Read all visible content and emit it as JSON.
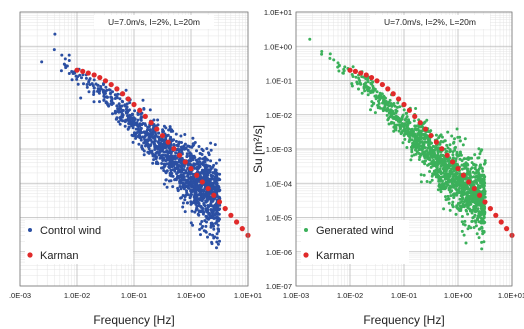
{
  "chart_data": [
    {
      "type": "scatter",
      "panel": "left",
      "annotation": "U=7.0m/s, I=2%, L=20m",
      "xlabel": "Frequency [Hz]",
      "ylabel": "",
      "xscale": "log",
      "yscale": "log",
      "xlim": [
        0.001,
        10
      ],
      "ylim": [
        1e-07,
        10
      ],
      "x_ticks": [
        ".0E-03",
        "1.0E-02",
        "1.0E-01",
        "1.0E+00",
        "1.0E+01"
      ],
      "y_ticks": [],
      "grid": true,
      "legend_position": "bottom-left",
      "series": [
        {
          "name": "Control wind",
          "color": "#2b4fa3",
          "marker": "dot",
          "points_note": "dense cloud, ~1500 points",
          "x": [
            0.0024,
            0.004,
            0.006,
            0.009,
            0.012,
            0.016,
            0.02,
            0.025,
            0.03,
            0.04,
            0.05,
            0.06,
            0.08,
            0.1,
            0.13,
            0.16,
            0.2,
            0.25,
            0.3,
            0.4,
            0.5,
            0.6,
            0.8,
            1.0,
            1.2,
            1.5,
            2.0,
            2.5,
            3.0
          ],
          "y": [
            0.35,
            0.8,
            0.3,
            0.18,
            0.12,
            0.09,
            0.06,
            0.05,
            0.04,
            0.025,
            0.018,
            0.012,
            0.008,
            0.005,
            0.0035,
            0.0025,
            0.0018,
            0.0012,
            0.0009,
            0.0006,
            0.0004,
            0.0003,
            0.0002,
            0.00015,
            0.00011,
            8e-05,
            6e-05,
            4e-05,
            3e-05
          ]
        },
        {
          "name": "Karman",
          "color": "#e02a2a",
          "marker": "circle",
          "x": [
            0.01,
            0.0126,
            0.0158,
            0.02,
            0.0251,
            0.0316,
            0.0398,
            0.0501,
            0.0631,
            0.0794,
            0.1,
            0.126,
            0.158,
            0.2,
            0.251,
            0.316,
            0.398,
            0.501,
            0.631,
            0.794,
            1.0,
            1.26,
            1.58,
            2.0,
            2.51,
            3.16,
            3.98,
            5.01,
            6.31,
            7.94,
            10.0
          ],
          "y": [
            0.2,
            0.185,
            0.165,
            0.145,
            0.122,
            0.098,
            0.076,
            0.057,
            0.041,
            0.0289,
            0.0199,
            0.0135,
            0.00895,
            0.00587,
            0.00382,
            0.00247,
            0.00159,
            0.00102,
            0.000654,
            0.000419,
            0.000268,
            0.000171,
            0.000109,
            6.98e-05,
            4.46e-05,
            2.85e-05,
            1.82e-05,
            1.16e-05,
            7.4e-06,
            4.73e-06,
            3.02e-06
          ]
        }
      ]
    },
    {
      "type": "scatter",
      "panel": "right",
      "annotation": "U=7.0m/s, I=2%, L=20m",
      "xlabel": "Frequency [Hz]",
      "ylabel": "Su [m²/s]",
      "xscale": "log",
      "yscale": "log",
      "xlim": [
        0.001,
        10
      ],
      "ylim": [
        1e-07,
        10
      ],
      "x_ticks": [
        "1.0E-03",
        "1.0E-02",
        "1.0E-01",
        "1.0E+00",
        "1.0E+01"
      ],
      "y_ticks": [
        "1.0E+01",
        "1.0E+00",
        "1.0E-01",
        "1.0E-02",
        "1.0E-03",
        "1.0E-04",
        "1.0E-05",
        "1.0E-06",
        "1.0E-07"
      ],
      "grid": true,
      "legend_position": "bottom-left",
      "series": [
        {
          "name": "Generated wind",
          "color": "#3bb05a",
          "marker": "dot",
          "points_note": "dense cloud, ~1500 points",
          "x": [
            0.0018,
            0.003,
            0.005,
            0.008,
            0.011,
            0.015,
            0.02,
            0.025,
            0.03,
            0.04,
            0.05,
            0.06,
            0.08,
            0.1,
            0.13,
            0.16,
            0.2,
            0.25,
            0.3,
            0.4,
            0.5,
            0.6,
            0.8,
            1.0,
            1.2,
            1.5,
            2.0,
            2.5,
            3.0
          ],
          "y": [
            1.6,
            0.7,
            0.4,
            0.25,
            0.15,
            0.1,
            0.07,
            0.05,
            0.035,
            0.022,
            0.015,
            0.011,
            0.007,
            0.0045,
            0.003,
            0.0022,
            0.0016,
            0.0011,
            0.0008,
            0.0005,
            0.00035,
            0.00026,
            0.00018,
            0.00013,
            0.0001,
            7e-05,
            5e-05,
            4e-05,
            3e-05
          ]
        },
        {
          "name": "Karman",
          "color": "#e02a2a",
          "marker": "circle",
          "x": [
            0.01,
            0.0126,
            0.0158,
            0.02,
            0.0251,
            0.0316,
            0.0398,
            0.0501,
            0.0631,
            0.0794,
            0.1,
            0.126,
            0.158,
            0.2,
            0.251,
            0.316,
            0.398,
            0.501,
            0.631,
            0.794,
            1.0,
            1.26,
            1.58,
            2.0,
            2.51,
            3.16,
            3.98,
            5.01,
            6.31,
            7.94,
            10.0
          ],
          "y": [
            0.2,
            0.185,
            0.165,
            0.145,
            0.122,
            0.098,
            0.076,
            0.057,
            0.041,
            0.0289,
            0.0199,
            0.0135,
            0.00895,
            0.00587,
            0.00382,
            0.00247,
            0.00159,
            0.00102,
            0.000654,
            0.000419,
            0.000268,
            0.000171,
            0.000109,
            6.98e-05,
            4.46e-05,
            2.85e-05,
            1.82e-05,
            1.16e-05,
            7.4e-06,
            4.73e-06,
            3.02e-06
          ]
        }
      ]
    }
  ]
}
